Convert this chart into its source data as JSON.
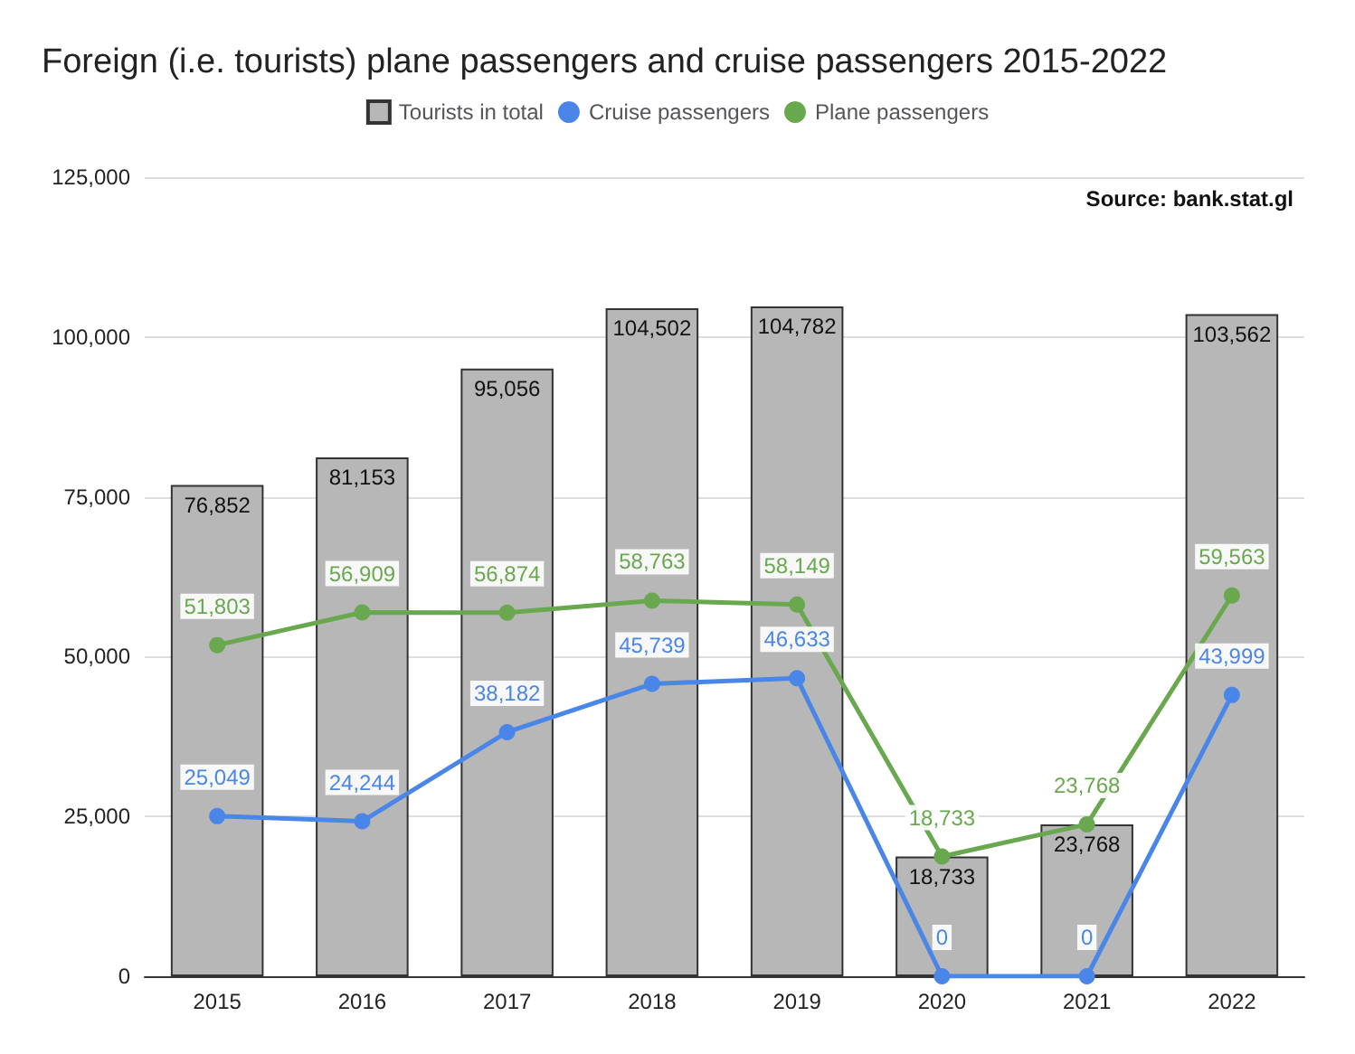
{
  "chart_data": {
    "type": "bar",
    "title": "Foreign (i.e. tourists) plane passengers and cruise passengers 2015-2022",
    "categories": [
      "2015",
      "2016",
      "2017",
      "2018",
      "2019",
      "2020",
      "2021",
      "2022"
    ],
    "series": [
      {
        "name": "Tourists in total",
        "color": "#b7b7b7",
        "values": [
          76852,
          81153,
          95056,
          104502,
          104782,
          18733,
          23768,
          103562
        ],
        "value_labels": [
          "76,852",
          "81,153",
          "95,056",
          "104,502",
          "104,782",
          "18,733",
          "23,768",
          "103,562"
        ]
      },
      {
        "name": "Cruise passengers",
        "type": "line",
        "color": "#4a86e8",
        "values": [
          25049,
          24244,
          38182,
          45739,
          46633,
          0,
          0,
          43999
        ],
        "value_labels": [
          "25,049",
          "24,244",
          "38,182",
          "45,739",
          "46,633",
          "0",
          "0",
          "43,999"
        ]
      },
      {
        "name": "Plane passengers",
        "type": "line",
        "color": "#6aa84f",
        "values": [
          51803,
          56909,
          56874,
          58763,
          58149,
          18733,
          23768,
          59563
        ],
        "value_labels": [
          "51,803",
          "56,909",
          "56,874",
          "58,763",
          "58,149",
          "18,733",
          "23,768",
          "59,563"
        ]
      }
    ],
    "ylim": [
      0,
      125000
    ],
    "yticks": [
      0,
      {
        "value": 25000,
        "label": "25,000"
      },
      {
        "value": 50000,
        "label": "50,000"
      },
      {
        "value": 75000,
        "label": "75,000"
      },
      {
        "value": 100000,
        "label": "100,000"
      },
      {
        "value": 125000,
        "label": "125,000"
      }
    ],
    "grid": "y",
    "legend": "top",
    "marker": "circle",
    "annotations": [
      "Source: bank.stat.gl"
    ]
  }
}
